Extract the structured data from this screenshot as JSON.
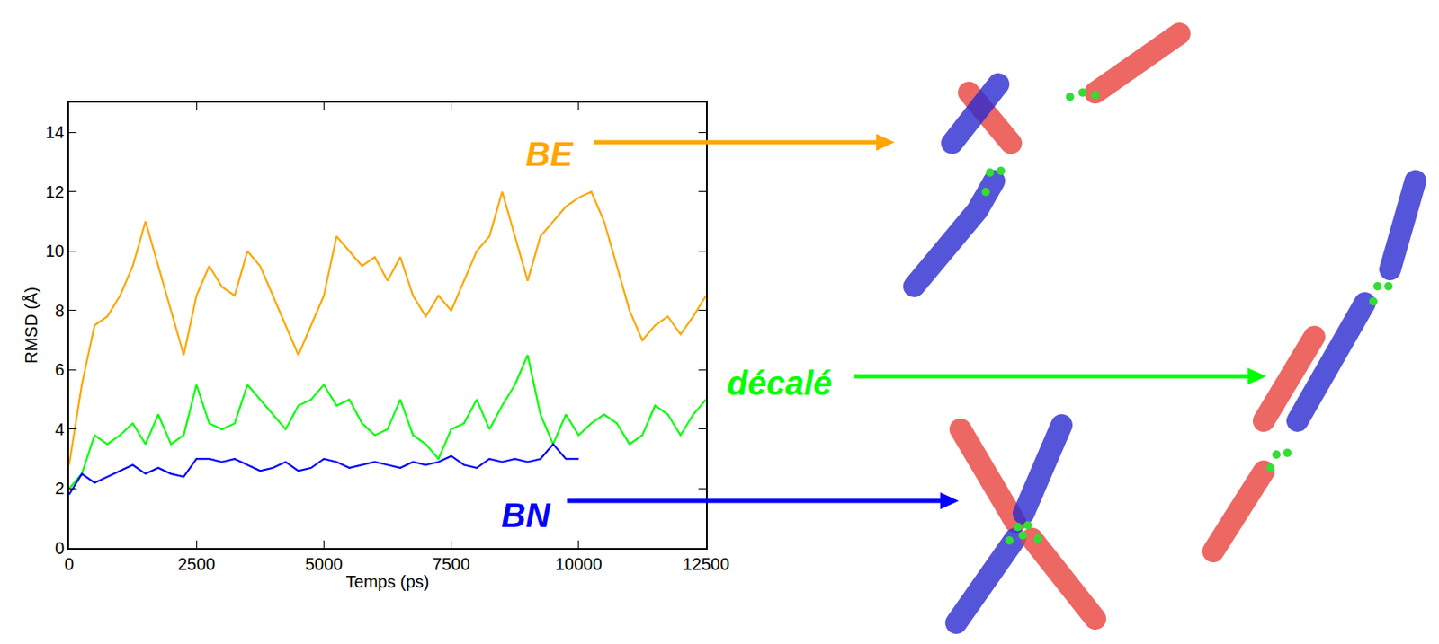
{
  "chart_data": {
    "type": "line",
    "x_label": "Temps (ps)",
    "y_label": "RMSD (Å)",
    "xlim": [
      0,
      12500
    ],
    "xticks": [
      0,
      2500,
      5000,
      7500,
      10000,
      12500
    ],
    "ylim": [
      0,
      15
    ],
    "yticks": [
      0,
      2,
      4,
      6,
      8,
      10,
      12,
      14
    ],
    "series": [
      {
        "name": "BE",
        "color": "#ffa500",
        "x": [
          0,
          250,
          500,
          750,
          1000,
          1250,
          1500,
          1750,
          2000,
          2250,
          2500,
          2750,
          3000,
          3250,
          3500,
          3750,
          4000,
          4250,
          4500,
          4750,
          5000,
          5250,
          5500,
          5750,
          6000,
          6250,
          6500,
          6750,
          7000,
          7250,
          7500,
          7750,
          8000,
          8250,
          8500,
          8750,
          9000,
          9250,
          9500,
          9750,
          10000,
          10250,
          10500,
          10750,
          11000,
          11250,
          11500,
          11750,
          12000,
          12250,
          12500
        ],
        "values": [
          2.8,
          5.5,
          7.5,
          7.8,
          8.5,
          9.5,
          11.0,
          9.5,
          8.0,
          6.5,
          8.5,
          9.5,
          8.8,
          8.5,
          10.0,
          9.5,
          8.5,
          7.5,
          6.5,
          7.5,
          8.5,
          10.5,
          10.0,
          9.5,
          9.8,
          9.0,
          9.8,
          8.5,
          7.8,
          8.5,
          8.0,
          9.0,
          10.0,
          10.5,
          12.0,
          10.5,
          9.0,
          10.5,
          11.0,
          11.5,
          11.8,
          12.0,
          11.0,
          9.5,
          8.0,
          7.0,
          7.5,
          7.8,
          7.2,
          7.8,
          8.5
        ]
      },
      {
        "name": "décalé",
        "color": "#00ff00",
        "x": [
          0,
          250,
          500,
          750,
          1000,
          1250,
          1500,
          1750,
          2000,
          2250,
          2500,
          2750,
          3000,
          3250,
          3500,
          3750,
          4000,
          4250,
          4500,
          4750,
          5000,
          5250,
          5500,
          5750,
          6000,
          6250,
          6500,
          6750,
          7000,
          7250,
          7500,
          7750,
          8000,
          8250,
          8500,
          8750,
          9000,
          9250,
          9500,
          9750,
          10000,
          10250,
          10500,
          10750,
          11000,
          11250,
          11500,
          11750,
          12000,
          12250,
          12500
        ],
        "values": [
          2.0,
          2.5,
          3.8,
          3.5,
          3.8,
          4.2,
          3.5,
          4.5,
          3.5,
          3.8,
          5.5,
          4.2,
          4.0,
          4.2,
          5.5,
          5.0,
          4.5,
          4.0,
          4.8,
          5.0,
          5.5,
          4.8,
          5.0,
          4.2,
          3.8,
          4.0,
          5.0,
          3.8,
          3.5,
          3.0,
          4.0,
          4.2,
          5.0,
          4.0,
          4.8,
          5.5,
          6.5,
          4.5,
          3.5,
          4.5,
          3.8,
          4.2,
          4.5,
          4.2,
          3.5,
          3.8,
          4.8,
          4.5,
          3.8,
          4.5,
          5.0
        ]
      },
      {
        "name": "BN",
        "color": "#0000ff",
        "x": [
          0,
          250,
          500,
          750,
          1000,
          1250,
          1500,
          1750,
          2000,
          2250,
          2500,
          2750,
          3000,
          3250,
          3500,
          3750,
          4000,
          4250,
          4500,
          4750,
          5000,
          5250,
          5500,
          5750,
          6000,
          6250,
          6500,
          6750,
          7000,
          7250,
          7500,
          7750,
          8000,
          8250,
          8500,
          8750,
          9000,
          9250,
          9500,
          9750,
          10000
        ],
        "values": [
          1.8,
          2.5,
          2.2,
          2.4,
          2.6,
          2.8,
          2.5,
          2.7,
          2.5,
          2.4,
          3.0,
          3.0,
          2.9,
          3.0,
          2.8,
          2.6,
          2.7,
          2.9,
          2.6,
          2.7,
          3.0,
          2.9,
          2.7,
          2.8,
          2.9,
          2.8,
          2.7,
          2.9,
          2.8,
          2.9,
          3.1,
          2.8,
          2.7,
          3.0,
          2.9,
          3.0,
          2.9,
          3.0,
          3.5,
          3.0,
          3.0
        ]
      }
    ]
  }
}
